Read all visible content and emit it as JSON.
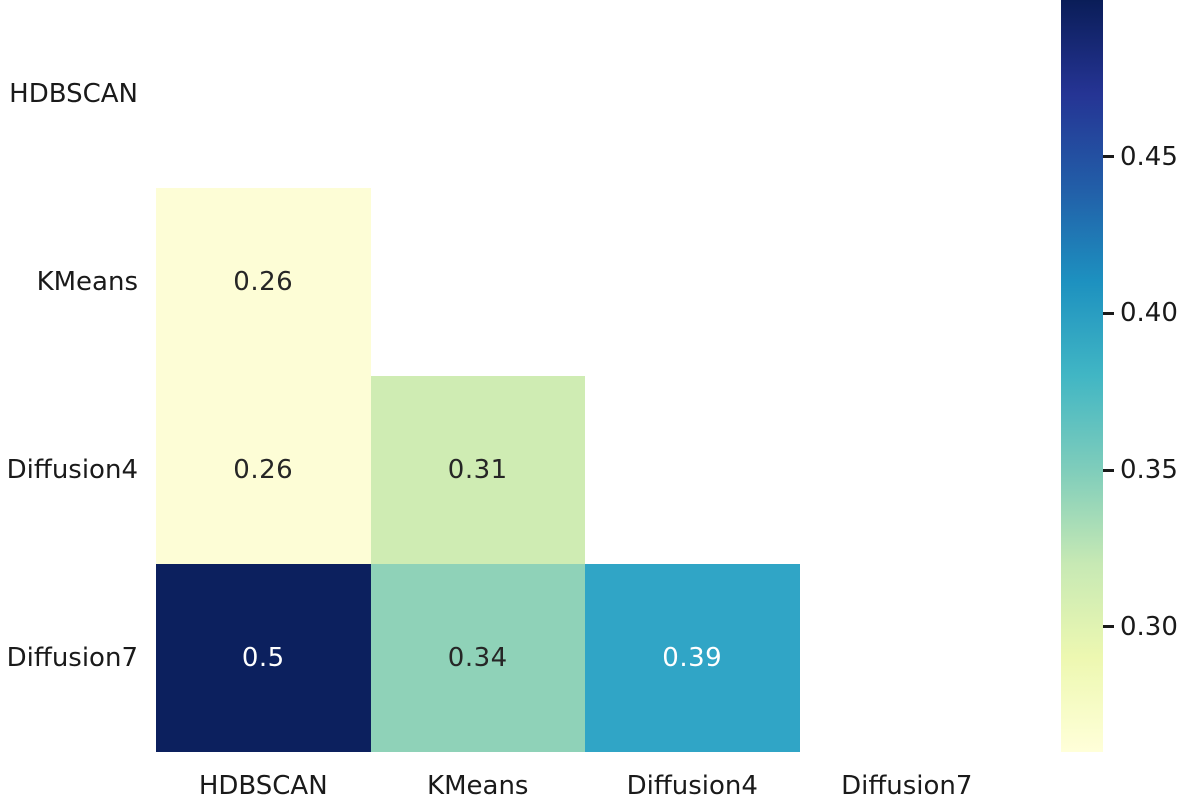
{
  "chart_data": {
    "type": "heatmap",
    "title": "",
    "colormap": "YlGnBu",
    "mask": "upper-triangle-and-diagonal",
    "row_labels": [
      "HDBSCAN",
      "KMeans",
      "Diffusion4",
      "Diffusion7"
    ],
    "col_labels": [
      "HDBSCAN",
      "KMeans",
      "Diffusion4",
      "Diffusion7"
    ],
    "matrix": [
      [
        null,
        null,
        null,
        null
      ],
      [
        0.26,
        null,
        null,
        null
      ],
      [
        0.26,
        0.31,
        null,
        null
      ],
      [
        0.5,
        0.34,
        0.39,
        null
      ]
    ],
    "cells": [
      {
        "row": 1,
        "col": 0,
        "value": 0.26,
        "label": "0.26",
        "bg": "#fdfdd6",
        "fg": "#262626"
      },
      {
        "row": 2,
        "col": 0,
        "value": 0.26,
        "label": "0.26",
        "bg": "#fdfdd6",
        "fg": "#262626"
      },
      {
        "row": 2,
        "col": 1,
        "value": 0.31,
        "label": "0.31",
        "bg": "#cfecb3",
        "fg": "#262626"
      },
      {
        "row": 3,
        "col": 0,
        "value": 0.5,
        "label": "0.5",
        "bg": "#0c205e",
        "fg": "#ffffff"
      },
      {
        "row": 3,
        "col": 1,
        "value": 0.34,
        "label": "0.34",
        "bg": "#8fd2b8",
        "fg": "#262626"
      },
      {
        "row": 3,
        "col": 2,
        "value": 0.39,
        "label": "0.39",
        "bg": "#30a5c6",
        "fg": "#ffffff"
      }
    ],
    "colorbar": {
      "vmin": 0.26,
      "vmax": 0.5,
      "ticks": [
        {
          "value": 0.45,
          "label": "0.45"
        },
        {
          "value": 0.4,
          "label": "0.40"
        },
        {
          "value": 0.35,
          "label": "0.35"
        },
        {
          "value": 0.3,
          "label": "0.30"
        }
      ],
      "gradient": [
        {
          "pos": 0,
          "color": "#0a1d58"
        },
        {
          "pos": 12.5,
          "color": "#253494"
        },
        {
          "pos": 25,
          "color": "#225ea8"
        },
        {
          "pos": 37.5,
          "color": "#1d91c0"
        },
        {
          "pos": 50,
          "color": "#41b6c4"
        },
        {
          "pos": 62.5,
          "color": "#7fcdbb"
        },
        {
          "pos": 75,
          "color": "#c7e9b4"
        },
        {
          "pos": 87.5,
          "color": "#edf8b1"
        },
        {
          "pos": 100,
          "color": "#ffffd9"
        }
      ]
    }
  }
}
